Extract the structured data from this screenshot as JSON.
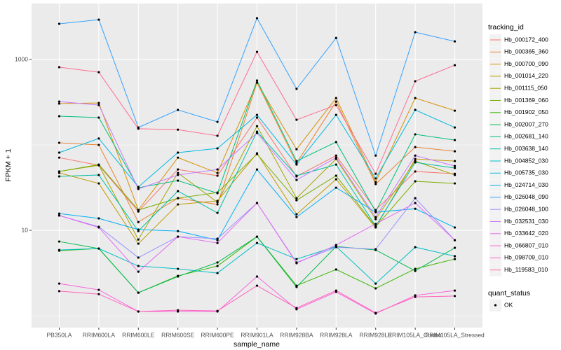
{
  "chart_data": {
    "type": "line",
    "xlabel": "sample_name",
    "ylabel": "FPKM + 1",
    "legend_title": "tracking_id",
    "point_legend_title": "quant_status",
    "point_legend_labels": [
      "OK"
    ],
    "point_color": "#000000",
    "log_y": true,
    "grid": true,
    "legend_position": "right",
    "categories": [
      "PB350LA",
      "RRIM600LA",
      "RRIM600LE",
      "RRIM600SE",
      "RRIM600PE",
      "RRIM901LA",
      "RRIM928BA",
      "RRIM928LA",
      "RRIM928LE",
      "RRIM105LA_Control",
      "RRIM105LA_Stressed"
    ],
    "ylim": [
      0.726,
      4530
    ],
    "yticks": [
      10,
      1000
    ],
    "series": [
      {
        "name": "Hb_000172_400",
        "color": "#F8766D",
        "values": [
          71,
          57.8,
          16.6,
          51.6,
          43.6,
          209,
          42.8,
          75,
          17.3,
          48.9,
          46
        ]
      },
      {
        "name": "Hb_000365_360",
        "color": "#EA8331",
        "values": [
          106,
          100,
          12.5,
          23.8,
          20.1,
          537,
          61.2,
          322,
          34.8,
          94.4,
          84.3
        ]
      },
      {
        "name": "Hb_000700_090",
        "color": "#D89000",
        "values": [
          305,
          310,
          17.3,
          71,
          47,
          537,
          89,
          354,
          36.8,
          354,
          252
        ]
      },
      {
        "name": "Hb_001014_220",
        "color": "#C09B00",
        "values": [
          47,
          35.4,
          6.98,
          20.1,
          22.1,
          79.8,
          15.4,
          39.6,
          10.8,
          68.5,
          64.7
        ]
      },
      {
        "name": "Hb_001115_050",
        "color": "#A3A500",
        "values": [
          48.9,
          57.8,
          7.8,
          47,
          21.3,
          166,
          23.8,
          68.5,
          13.5,
          64.7,
          44.5
        ]
      },
      {
        "name": "Hb_001369_060",
        "color": "#7CAE00",
        "values": [
          48.9,
          58.9,
          17.3,
          23.8,
          27.7,
          78.2,
          22.5,
          43.6,
          11,
          37.5,
          35.4
        ]
      },
      {
        "name": "Hb_001902_050",
        "color": "#39B600",
        "values": [
          5.78,
          6.12,
          1.86,
          2.93,
          3.82,
          8.43,
          2.25,
          3.48,
          2.09,
          3.54,
          4.61
        ]
      },
      {
        "name": "Hb_002007_270",
        "color": "#00BB4E",
        "values": [
          7.39,
          6.12,
          1.86,
          2.88,
          4.2,
          8.43,
          2.17,
          6.47,
          5.89,
          3.35,
          6.24
        ]
      },
      {
        "name": "Hb_002681_140",
        "color": "#00BF7D",
        "values": [
          217,
          209,
          31.6,
          38.2,
          27.2,
          568,
          64.7,
          108,
          16.6,
          133,
          114
        ]
      },
      {
        "name": "Hb_003638_140",
        "color": "#00C1A3",
        "values": [
          42.8,
          44.5,
          9.8,
          28.8,
          16,
          143,
          43.6,
          58.9,
          11.2,
          62.4,
          53.7
        ]
      },
      {
        "name": "Hb_004852_030",
        "color": "#00BFC4",
        "values": [
          5.89,
          6.12,
          3.82,
          3.54,
          3.16,
          7.11,
          4.61,
          6.47,
          2.38,
          6.35,
          4.98
        ]
      },
      {
        "name": "Hb_005735_030",
        "color": "#00BAE0",
        "values": [
          81.3,
          119,
          32.2,
          81.3,
          91,
          225,
          58.9,
          225,
          40.5,
          257,
          160
        ]
      },
      {
        "name": "Hb_024714_030",
        "color": "#00B0F6",
        "values": [
          15.7,
          13.8,
          10.2,
          9.8,
          7.67,
          51.6,
          14.3,
          31.6,
          16.3,
          17.9,
          10.8
        ]
      },
      {
        "name": "Hb_026048_090",
        "color": "#35A2FF",
        "values": [
          2620,
          2930,
          160,
          257,
          186,
          3050,
          453,
          1790,
          75,
          2090,
          1630
        ]
      },
      {
        "name": "Hb_026048_100",
        "color": "#9590FF",
        "values": [
          14.9,
          11,
          4.79,
          8.43,
          7.98,
          20.9,
          4.2,
          6.35,
          6.01,
          23.8,
          7.67
        ]
      },
      {
        "name": "Hb_032531_030",
        "color": "#C77CFF",
        "values": [
          322,
          293,
          30.5,
          44.5,
          51.6,
          138,
          38.9,
          71,
          14.3,
          75,
          56.7
        ]
      },
      {
        "name": "Hb_033642_020",
        "color": "#E76BF3",
        "values": [
          14.9,
          10.8,
          3.28,
          8.43,
          7.11,
          20.9,
          4.12,
          6.73,
          11.9,
          20.9,
          7.67
        ]
      },
      {
        "name": "Hb_066807_010",
        "color": "#FA62DB",
        "values": [
          2.38,
          2.01,
          1.12,
          1.12,
          1.12,
          2.88,
          1.19,
          1.9,
          1.06,
          1.73,
          1.97
        ]
      },
      {
        "name": "Hb_098709_010",
        "color": "#FF62BC",
        "values": [
          1.94,
          1.79,
          1.12,
          1.16,
          1.14,
          2.25,
          1.23,
          1.97,
          1.08,
          1.66,
          1.7
        ]
      },
      {
        "name": "Hb_119583_010",
        "color": "#FF6C91",
        "values": [
          813,
          711,
          155,
          151,
          128,
          1230,
          197,
          293,
          46,
          557,
          859
        ]
      }
    ]
  }
}
